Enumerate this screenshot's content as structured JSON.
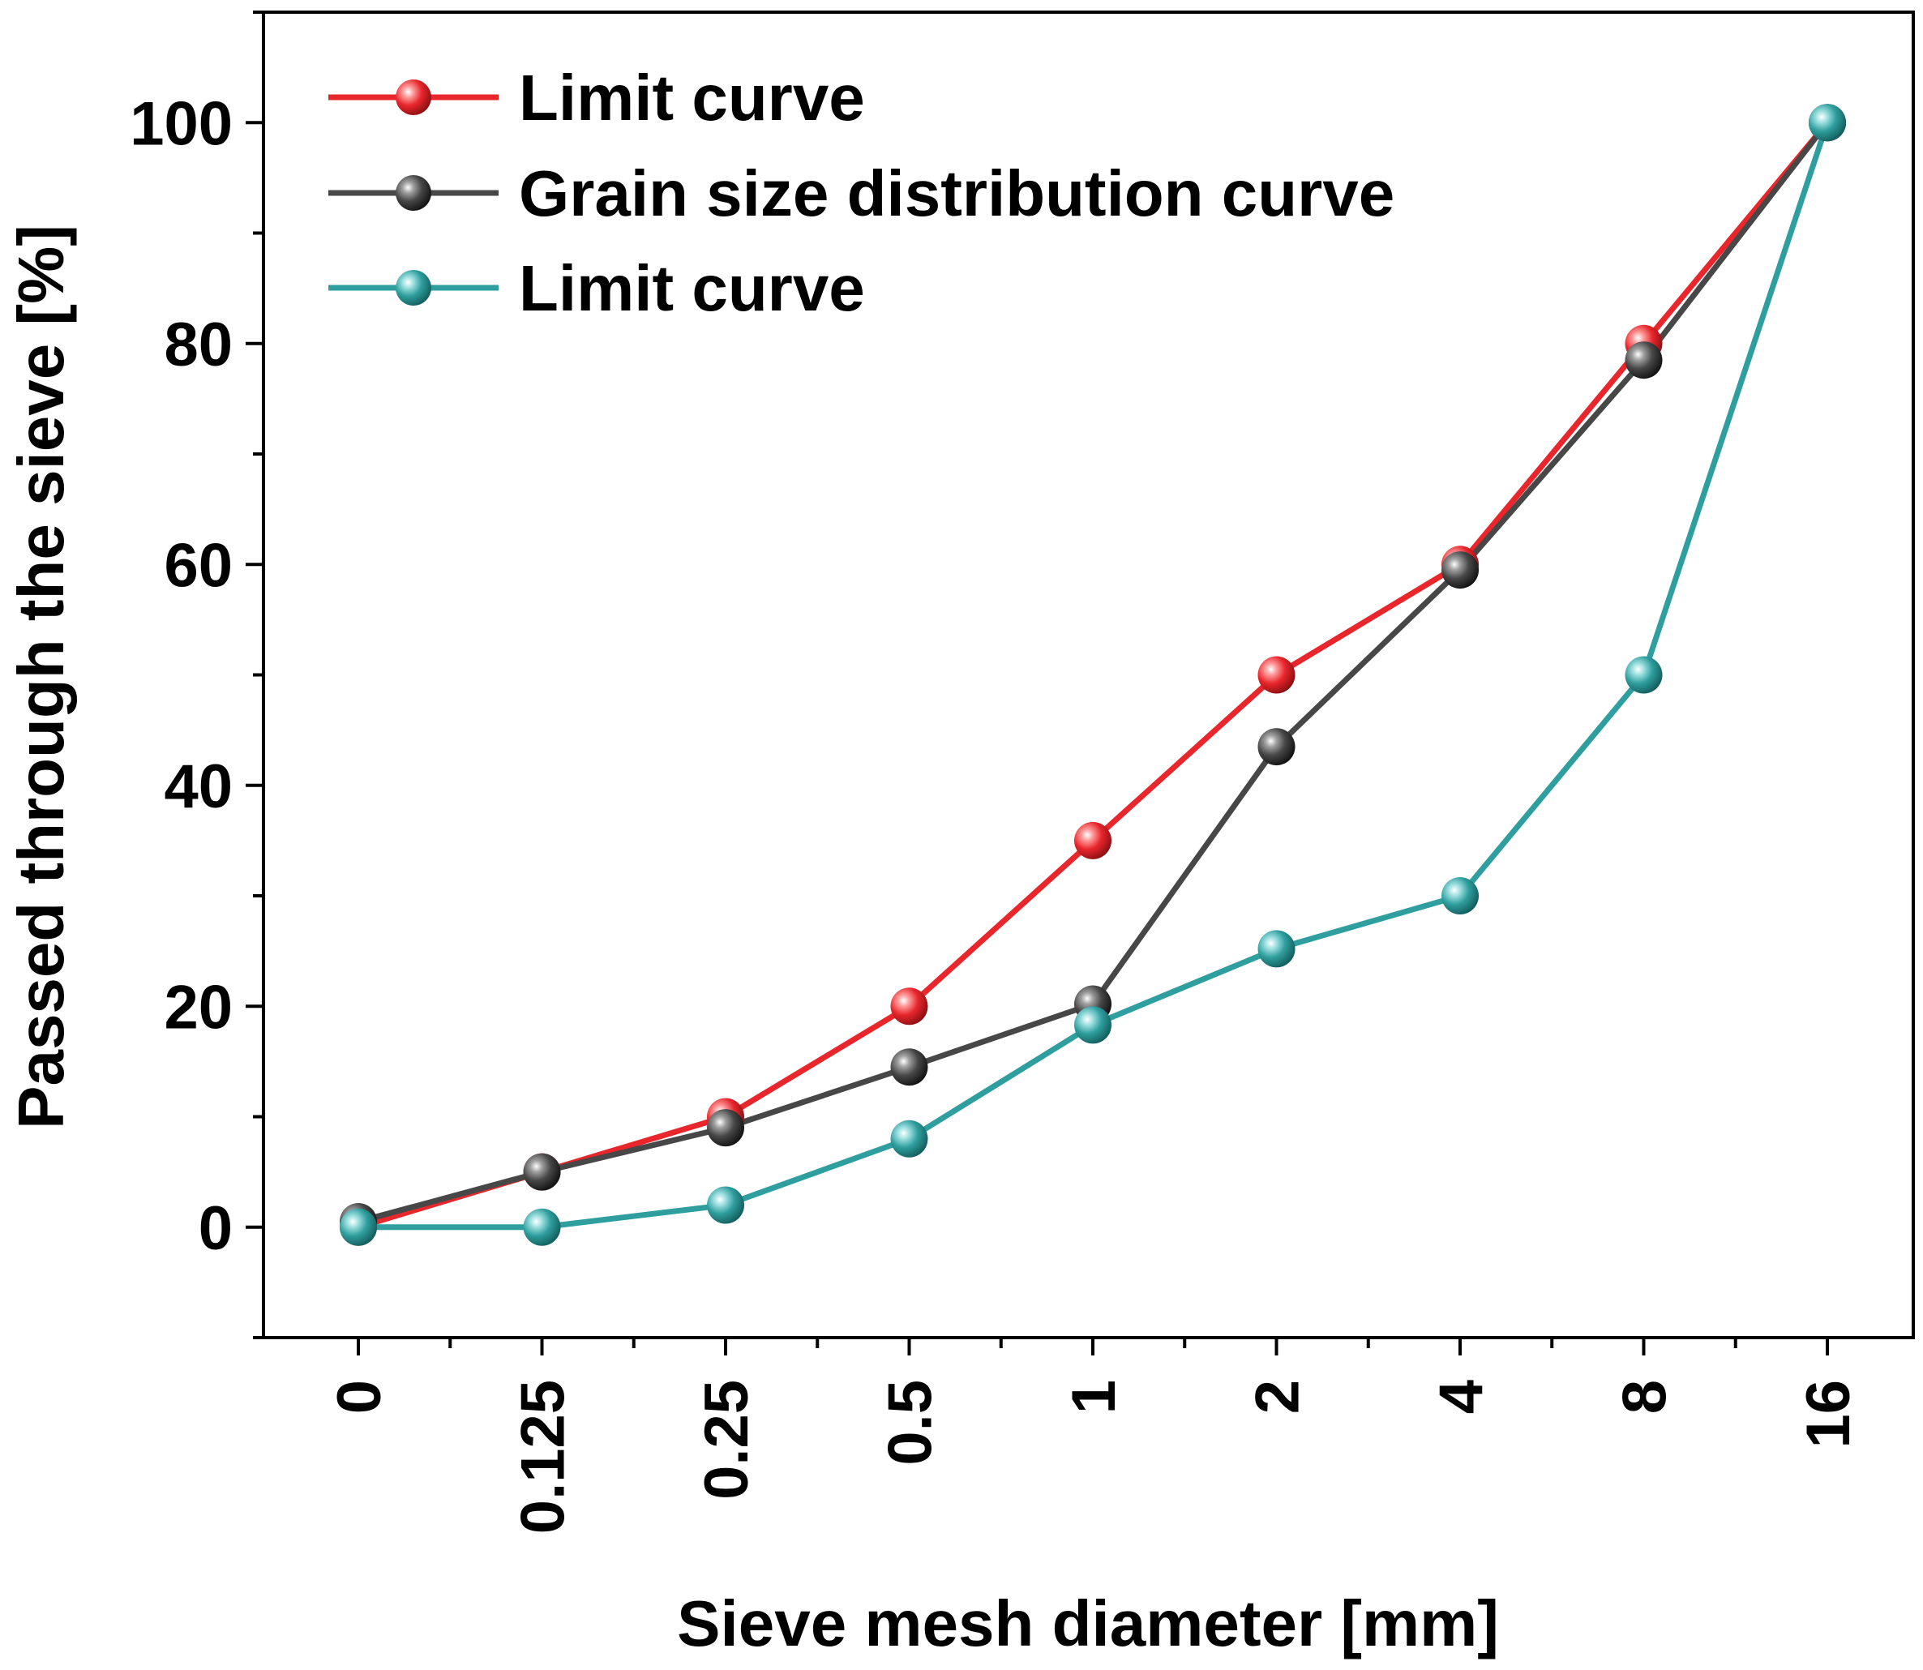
{
  "chart_data": {
    "type": "line",
    "title": "",
    "xlabel": "Sieve mesh diameter [mm]",
    "ylabel": "Passed through the sieve [%]",
    "categories": [
      "0",
      "0.125",
      "0.25",
      "0.5",
      "1",
      "2",
      "4",
      "8",
      "16"
    ],
    "ylim": [
      -10,
      110
    ],
    "yticks": [
      0,
      20,
      40,
      60,
      80,
      100
    ],
    "grid": false,
    "legend_position": "top-left",
    "series": [
      {
        "name": "Limit curve",
        "color": "#e8262c",
        "values": [
          0,
          5,
          10,
          20,
          35,
          50,
          60,
          80,
          100
        ]
      },
      {
        "name": "Grain size distribution curve",
        "color": "#474747",
        "values": [
          0.5,
          5,
          9,
          14.5,
          20.2,
          43.5,
          59.5,
          78.5,
          100
        ]
      },
      {
        "name": "Limit curve",
        "color": "#2f9e9e",
        "values": [
          0,
          0,
          2,
          8,
          18.3,
          25.2,
          30,
          50,
          100
        ]
      }
    ]
  }
}
